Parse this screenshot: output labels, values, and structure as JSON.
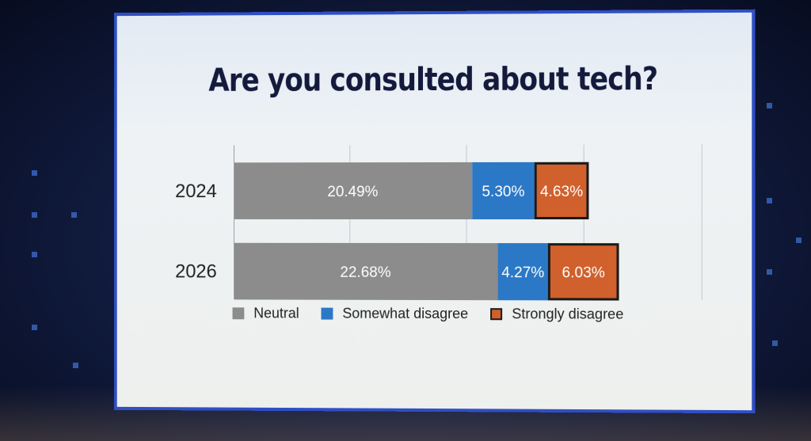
{
  "colors": {
    "neutral": "#8c8c8c",
    "somewhat": "#2b78c6",
    "strongly": "#d0602c",
    "outline": "#1a1a1a"
  },
  "chart_data": {
    "type": "bar",
    "orientation": "horizontal",
    "stacked": true,
    "title": "Are you consulted about tech?",
    "categories": [
      "2024",
      "2026"
    ],
    "series": [
      {
        "name": "Neutral",
        "values": [
          20.49,
          22.68
        ],
        "labels": [
          "20.49%",
          "22.68%"
        ]
      },
      {
        "name": "Somewhat disagree",
        "values": [
          5.3,
          4.27
        ],
        "labels": [
          "5.30%",
          "4.27%"
        ]
      },
      {
        "name": "Strongly disagree",
        "values": [
          4.63,
          6.03
        ],
        "labels": [
          "4.63%",
          "6.03%"
        ]
      }
    ],
    "xlim": [
      0,
      40
    ],
    "grid": true,
    "legend": "bottom"
  }
}
